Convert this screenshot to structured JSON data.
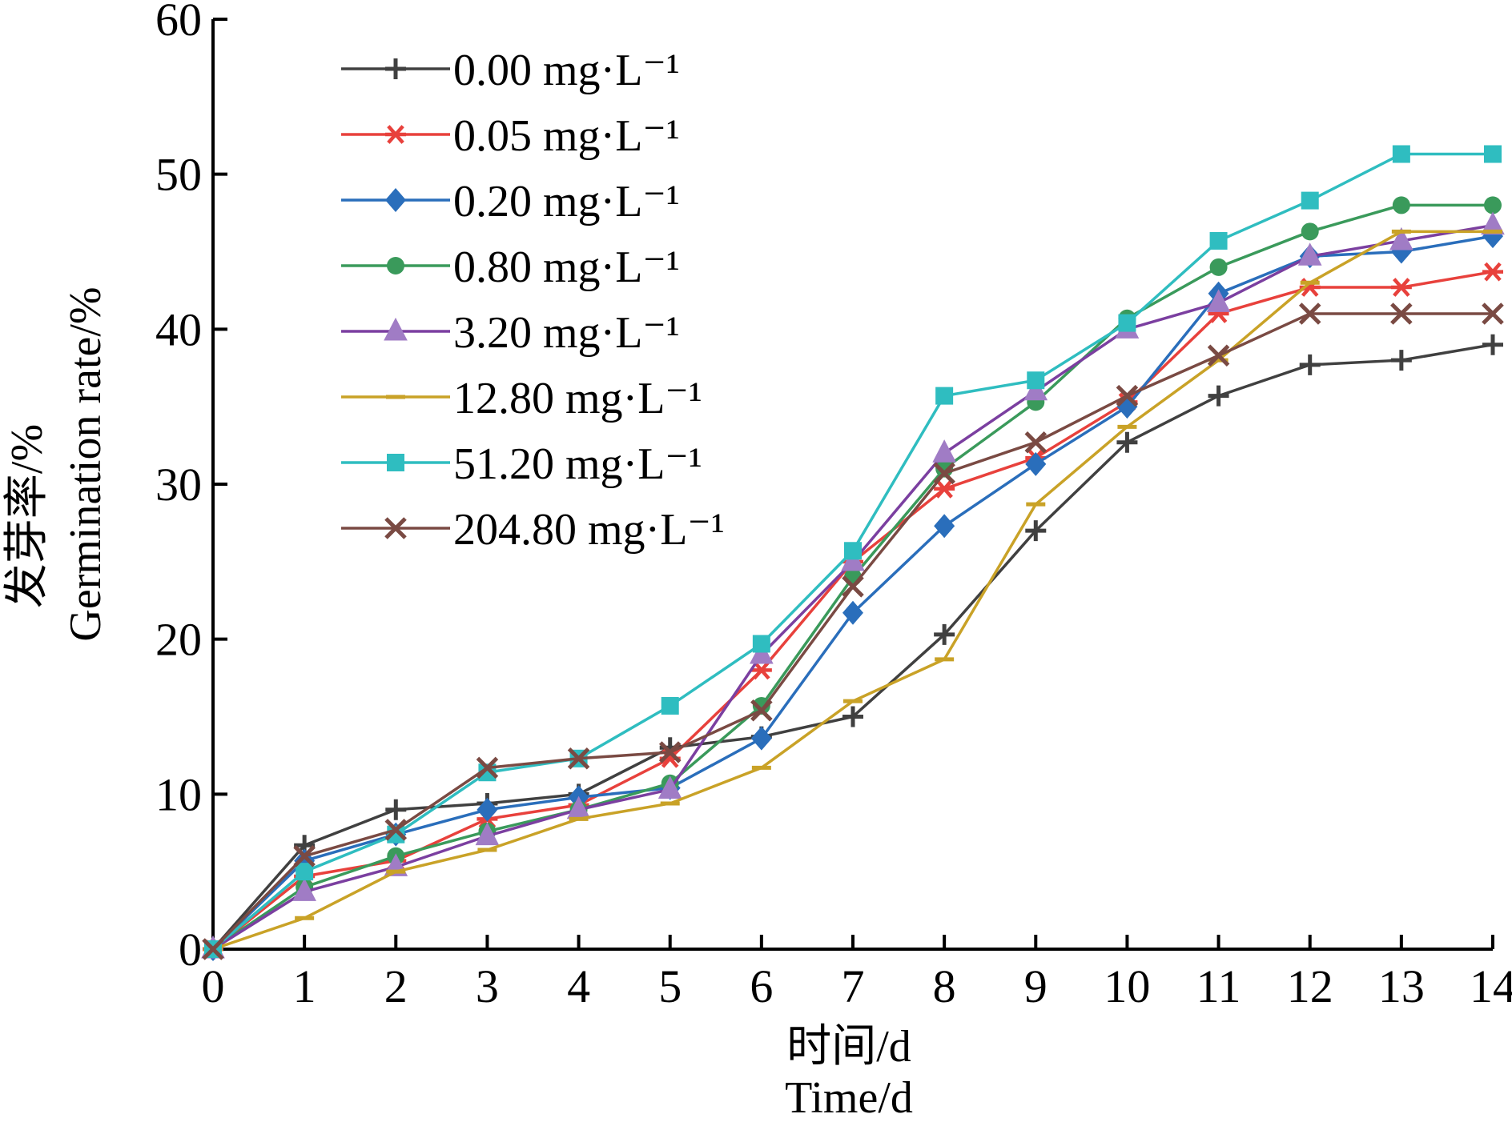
{
  "chart_data": {
    "type": "line",
    "xlabel_cn": "时间/d",
    "xlabel_en": "Time/d",
    "ylabel_cn": "发芽率/%",
    "ylabel_en": "Germination rate/%",
    "xlim": [
      0,
      14
    ],
    "ylim": [
      0,
      60
    ],
    "x_ticks": [
      "0",
      "1",
      "2",
      "3",
      "4",
      "5",
      "6",
      "7",
      "8",
      "9",
      "10",
      "11",
      "12",
      "13",
      "14"
    ],
    "y_ticks": [
      "0",
      "10",
      "20",
      "30",
      "40",
      "50",
      "60"
    ],
    "grid": false,
    "legend_position": "top-left",
    "x": [
      0,
      1,
      2,
      3,
      4,
      5,
      6,
      7,
      8,
      9,
      10,
      11,
      12,
      13,
      14
    ],
    "series": [
      {
        "name": "0.00 mg·L⁻¹",
        "color": "#404040",
        "marker": "plus",
        "values": [
          0,
          6.7,
          9.0,
          9.4,
          10.0,
          13.0,
          13.7,
          15.0,
          20.3,
          27.0,
          32.7,
          35.7,
          37.7,
          38.0,
          39.0
        ]
      },
      {
        "name": "0.05 mg·L⁻¹",
        "color": "#e8413c",
        "marker": "asterisk",
        "values": [
          0,
          4.7,
          5.7,
          8.4,
          9.3,
          12.3,
          18.0,
          25.0,
          29.7,
          31.7,
          35.3,
          41.0,
          42.7,
          42.7,
          43.7
        ]
      },
      {
        "name": "0.20 mg·L⁻¹",
        "color": "#2a6ebb",
        "marker": "diamond",
        "values": [
          0,
          5.7,
          7.4,
          9.0,
          9.8,
          10.4,
          13.6,
          21.7,
          27.3,
          31.3,
          35.0,
          42.3,
          44.7,
          45.0,
          46.0
        ]
      },
      {
        "name": "0.80 mg·L⁻¹",
        "color": "#3a9a5b",
        "marker": "circle",
        "values": [
          0,
          4.0,
          6.0,
          7.6,
          9.0,
          10.7,
          15.7,
          24.0,
          31.0,
          35.3,
          40.7,
          44.0,
          46.3,
          48.0,
          48.0
        ]
      },
      {
        "name": "3.20 mg·L⁻¹",
        "color": "#7b3fa0",
        "marker": "triangle",
        "values": [
          0,
          3.7,
          5.3,
          7.3,
          9.0,
          10.3,
          19.0,
          25.0,
          32.0,
          36.0,
          40.0,
          41.7,
          44.7,
          45.7,
          46.7
        ]
      },
      {
        "name": "12.80 mg·L⁻¹",
        "color": "#c9a227",
        "marker": "dash",
        "values": [
          0,
          2.0,
          5.0,
          6.4,
          8.4,
          9.4,
          11.7,
          16.0,
          18.7,
          28.7,
          33.7,
          38.0,
          43.0,
          46.3,
          46.3
        ]
      },
      {
        "name": "51.20 mg·L⁻¹",
        "color": "#2fbdc0",
        "marker": "square",
        "values": [
          0,
          5.0,
          7.4,
          11.4,
          12.3,
          15.7,
          19.7,
          25.7,
          35.7,
          36.7,
          40.4,
          45.7,
          48.3,
          51.3,
          51.3
        ]
      },
      {
        "name": "204.80 mg·L⁻¹",
        "color": "#7a4a43",
        "marker": "x",
        "values": [
          0,
          6.0,
          7.7,
          11.7,
          12.3,
          12.7,
          15.4,
          23.4,
          30.7,
          32.7,
          35.7,
          38.3,
          41.0,
          41.0,
          41.0
        ]
      }
    ]
  }
}
